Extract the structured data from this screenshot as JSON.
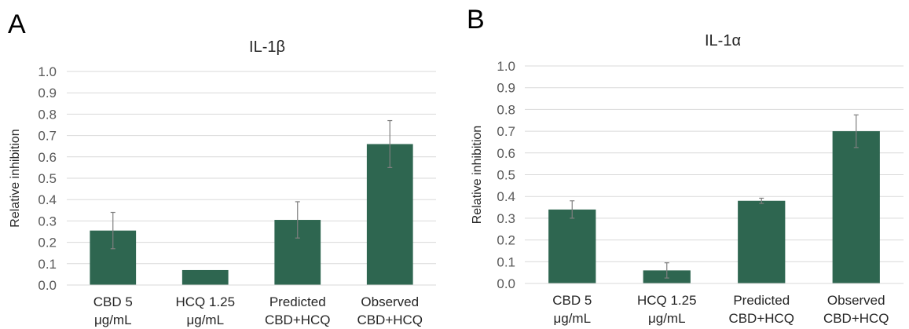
{
  "panels": [
    {
      "letter": "A"
    },
    {
      "letter": "B"
    }
  ],
  "chart_data": [
    {
      "type": "bar",
      "title": "IL-1β",
      "xlabel": "",
      "ylabel": "Relative inhibition",
      "categories": [
        "CBD 5 μg/mL",
        "HCQ 1.25 μg/mL",
        "Predicted CBD+HCQ",
        "Observed CBD+HCQ"
      ],
      "category_lines": [
        [
          "CBD 5",
          "μg/mL"
        ],
        [
          "HCQ 1.25",
          "μg/mL"
        ],
        [
          "Predicted",
          "CBD+HCQ"
        ],
        [
          "Observed",
          "CBD+HCQ"
        ]
      ],
      "values": [
        0.255,
        0.07,
        0.305,
        0.66
      ],
      "errors": [
        0.085,
        0.0,
        0.085,
        0.11
      ],
      "ylim": [
        0,
        1.0
      ],
      "yticks": [
        "0.0",
        "0.1",
        "0.2",
        "0.3",
        "0.4",
        "0.5",
        "0.6",
        "0.7",
        "0.8",
        "0.9",
        "1.0"
      ],
      "grid": true,
      "bar_color": "#2E6650"
    },
    {
      "type": "bar",
      "title": "IL-1α",
      "xlabel": "",
      "ylabel": "Relative inhibition",
      "categories": [
        "CBD 5 μg/mL",
        "HCQ 1.25 μg/mL",
        "Predicted CBD+HCQ",
        "Observed CBD+HCQ"
      ],
      "category_lines": [
        [
          "CBD 5",
          "μg/mL"
        ],
        [
          "HCQ 1.25",
          "μg/mL"
        ],
        [
          "Predicted",
          "CBD+HCQ"
        ],
        [
          "Observed",
          "CBD+HCQ"
        ]
      ],
      "values": [
        0.34,
        0.06,
        0.38,
        0.7
      ],
      "errors": [
        0.04,
        0.035,
        0.012,
        0.075
      ],
      "ylim": [
        0,
        1.0
      ],
      "yticks": [
        "0.0",
        "0.1",
        "0.2",
        "0.3",
        "0.4",
        "0.5",
        "0.6",
        "0.7",
        "0.8",
        "0.9",
        "1.0"
      ],
      "grid": true,
      "bar_color": "#2E6650"
    }
  ]
}
